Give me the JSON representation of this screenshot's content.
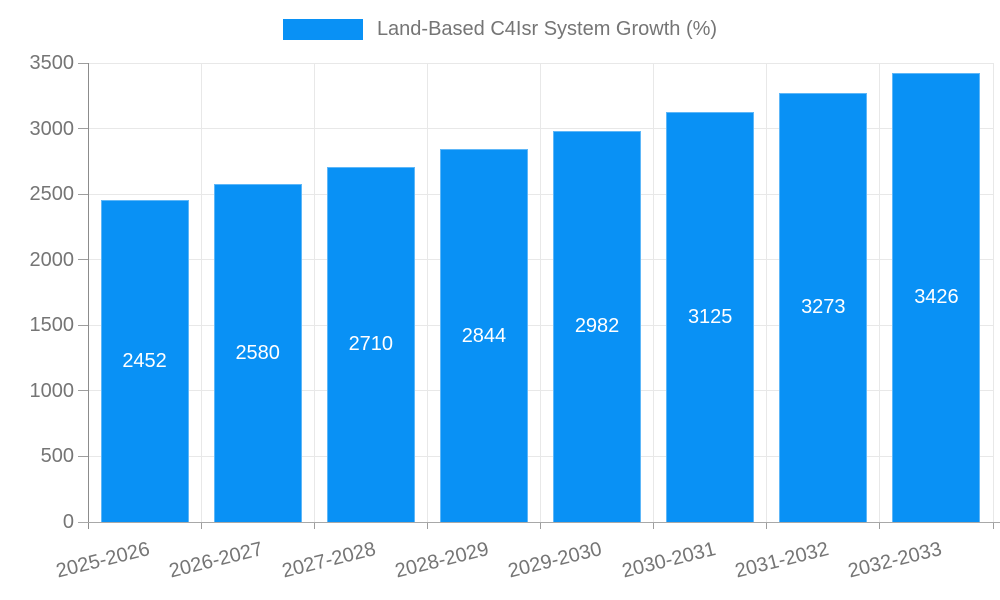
{
  "legend": {
    "label": "Land-Based C4Isr System Growth (%)"
  },
  "colors": {
    "bar": "#0991f5",
    "bar_edge": "rgba(255,255,255,0.35)",
    "bar_value_text": "#ffffff",
    "axis_text": "#757575",
    "gridline": "#e8e8e8",
    "axis_line": "#8c8c8c"
  },
  "chart_data": {
    "type": "bar",
    "title": "Land-Based C4Isr System Growth (%)",
    "series_label": "Land-Based C4Isr System Growth (%)",
    "categories": [
      "2025-2026",
      "2026-2027",
      "2027-2028",
      "2028-2029",
      "2029-2030",
      "2030-2031",
      "2031-2032",
      "2032-2033"
    ],
    "values": [
      2452,
      2580,
      2710,
      2844,
      2982,
      3125,
      3273,
      3426
    ],
    "bar_value_labels": [
      "2452",
      "2580",
      "2710",
      "2844",
      "2982",
      "3125",
      "3273",
      "3426"
    ],
    "xlabel": "",
    "ylabel": "",
    "ylim": [
      0,
      3500
    ],
    "yticks": [
      0,
      500,
      1000,
      1500,
      2000,
      2500,
      3000,
      3500
    ],
    "grid": true,
    "legend_position": "top-center",
    "x_tick_rotation_deg": -14
  }
}
